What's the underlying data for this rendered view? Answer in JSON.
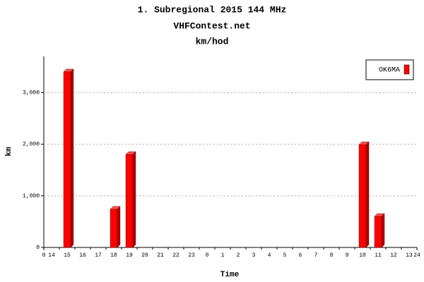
{
  "chart_data": {
    "type": "bar3d",
    "title": "1. Subregional 2015 144 MHz",
    "subtitle": "VHFContest.net",
    "unit": "km/hod",
    "x_label": "Time",
    "y_label": "km",
    "categories": [
      "14",
      "15",
      "16",
      "17",
      "18",
      "19",
      "20",
      "21",
      "22",
      "23",
      "0",
      "1",
      "2",
      "3",
      "4",
      "5",
      "6",
      "7",
      "8",
      "9",
      "10",
      "11",
      "12",
      "13"
    ],
    "series": [
      {
        "name": "OK6MA",
        "color": "#ff0000",
        "values": [
          0,
          3400,
          0,
          0,
          740,
          1800,
          0,
          0,
          0,
          0,
          0,
          0,
          0,
          0,
          0,
          0,
          0,
          0,
          0,
          0,
          1990,
          600,
          0,
          0
        ]
      }
    ],
    "xlim": [
      0,
      24
    ],
    "xticks": [
      0,
      24
    ],
    "ylim": [
      0,
      3700
    ],
    "yticks": [
      0,
      {
        "value": 1000,
        "label": "1,000"
      },
      {
        "value": 2000,
        "label": "2,000"
      },
      {
        "value": 3000,
        "label": "3,000"
      }
    ],
    "grid": true,
    "legend": "top-right"
  }
}
